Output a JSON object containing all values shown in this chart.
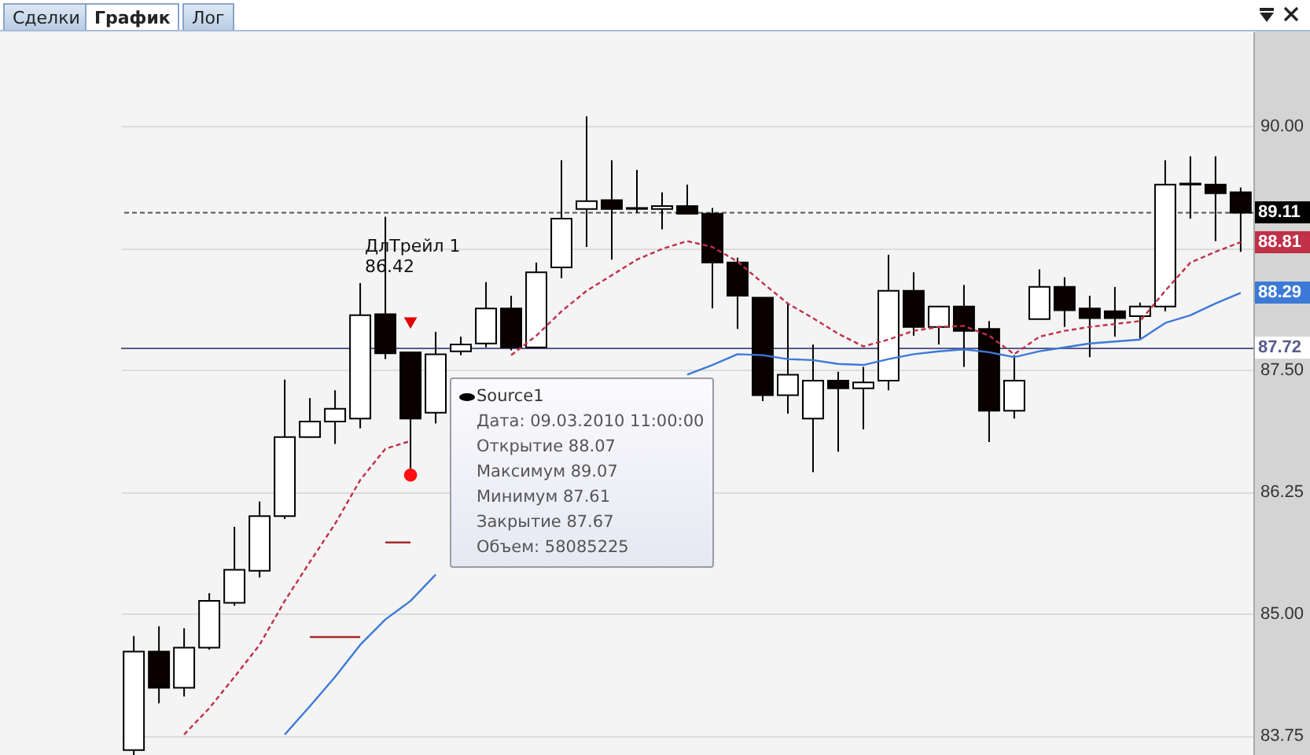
{
  "chart_data": {
    "type": "candlestick",
    "categories": [
      null,
      null,
      null,
      null,
      null,
      null,
      null,
      null,
      null,
      null,
      null,
      null,
      null,
      null,
      null,
      null,
      null,
      null,
      null,
      null,
      null,
      null,
      null,
      null,
      null,
      null,
      null,
      null,
      null,
      null,
      null,
      null,
      null,
      null,
      null,
      null,
      null,
      null,
      null,
      null,
      null,
      null,
      null,
      null,
      null
    ],
    "ohlc": [
      [
        83.6,
        84.77,
        83.55,
        84.61
      ],
      [
        84.61,
        84.87,
        84.08,
        84.24
      ],
      [
        84.24,
        84.85,
        84.15,
        84.65
      ],
      [
        84.65,
        85.21,
        84.63,
        85.13
      ],
      [
        85.11,
        85.89,
        85.08,
        85.45
      ],
      [
        85.44,
        86.15,
        85.37,
        86.0
      ],
      [
        86.0,
        87.4,
        85.97,
        86.81
      ],
      [
        86.81,
        87.21,
        86.81,
        86.97
      ],
      [
        86.97,
        87.29,
        86.74,
        87.1
      ],
      [
        87.0,
        88.39,
        86.9,
        88.06
      ],
      [
        88.07,
        89.07,
        87.61,
        87.67
      ],
      [
        87.68,
        87.68,
        86.45,
        87.0
      ],
      [
        87.06,
        87.89,
        86.95,
        87.66
      ],
      [
        87.69,
        87.84,
        87.65,
        87.76
      ],
      [
        87.77,
        88.4,
        87.73,
        88.13
      ],
      [
        88.13,
        88.26,
        87.7,
        87.73
      ],
      [
        87.73,
        88.6,
        87.73,
        88.5
      ],
      [
        88.55,
        89.65,
        88.44,
        89.05
      ],
      [
        89.15,
        90.1,
        88.76,
        89.23
      ],
      [
        89.24,
        89.65,
        88.63,
        89.15
      ],
      [
        89.16,
        89.55,
        89.11,
        89.15
      ],
      [
        89.15,
        89.32,
        88.94,
        89.18
      ],
      [
        89.18,
        89.4,
        89.1,
        89.1
      ],
      [
        89.1,
        89.16,
        88.13,
        88.6
      ],
      [
        88.6,
        88.65,
        87.92,
        88.26
      ],
      [
        88.24,
        88.24,
        87.18,
        87.24
      ],
      [
        87.24,
        88.18,
        87.05,
        87.45
      ],
      [
        87.0,
        87.76,
        86.45,
        87.39
      ],
      [
        87.39,
        87.48,
        86.66,
        87.31
      ],
      [
        87.31,
        87.53,
        86.89,
        87.37
      ],
      [
        87.39,
        88.68,
        87.29,
        88.31
      ],
      [
        88.31,
        88.5,
        87.85,
        87.94
      ],
      [
        87.94,
        88.15,
        87.76,
        88.15
      ],
      [
        88.15,
        88.37,
        87.53,
        87.9
      ],
      [
        87.92,
        88.0,
        86.76,
        87.08
      ],
      [
        87.08,
        87.65,
        87.0,
        87.39
      ],
      [
        88.02,
        88.53,
        88.02,
        88.35
      ],
      [
        88.35,
        88.45,
        87.94,
        88.11
      ],
      [
        88.13,
        88.26,
        87.63,
        88.03
      ],
      [
        88.1,
        88.35,
        87.84,
        88.03
      ],
      [
        88.05,
        88.19,
        87.82,
        88.15
      ],
      [
        88.15,
        89.65,
        88.1,
        89.4
      ],
      [
        89.4,
        89.69,
        89.05,
        89.41
      ],
      [
        89.4,
        89.69,
        88.82,
        89.31
      ],
      [
        89.32,
        89.37,
        88.71,
        89.11
      ]
    ],
    "series": [
      {
        "type": "line",
        "color": "#c03048",
        "line_style": "dashed",
        "values": [
          null,
          null,
          83.76,
          84.03,
          84.35,
          84.68,
          85.13,
          85.53,
          85.92,
          86.37,
          86.69,
          86.77,
          null,
          null,
          null,
          87.65,
          87.85,
          88.1,
          88.31,
          88.47,
          88.63,
          88.74,
          88.82,
          88.76,
          88.61,
          88.39,
          88.18,
          88.03,
          87.87,
          87.74,
          87.81,
          87.9,
          87.94,
          87.95,
          87.85,
          87.66,
          87.84,
          87.9,
          87.94,
          87.97,
          88.0,
          88.31,
          88.6,
          88.71,
          88.81
        ]
      },
      {
        "type": "line",
        "color": "#3c7ad8",
        "line_style": "solid",
        "values": [
          null,
          null,
          null,
          null,
          null,
          null,
          83.76,
          84.05,
          84.35,
          84.68,
          84.94,
          85.13,
          85.4,
          null,
          null,
          null,
          null,
          null,
          null,
          null,
          null,
          null,
          87.45,
          87.55,
          87.66,
          87.65,
          87.61,
          87.6,
          87.56,
          87.55,
          87.61,
          87.66,
          87.69,
          87.71,
          87.68,
          87.63,
          87.69,
          87.73,
          87.77,
          87.79,
          87.81,
          87.98,
          88.06,
          88.18,
          88.29
        ]
      },
      {
        "type": "line",
        "color": "#a52a2a",
        "line_style": "solid",
        "values": [
          null,
          null,
          null,
          null,
          null,
          null,
          null,
          84.76,
          84.76,
          84.76,
          null,
          null,
          null,
          null,
          null,
          null,
          null,
          null,
          null,
          null,
          null,
          null,
          null,
          null,
          null,
          null,
          null,
          null,
          null,
          null,
          null,
          null,
          null,
          null,
          null,
          null,
          null,
          null,
          null,
          null,
          null,
          null,
          null,
          null,
          null
        ]
      },
      {
        "type": "line",
        "color": "#a52a2a",
        "line_style": "solid",
        "values": [
          null,
          null,
          null,
          null,
          null,
          null,
          null,
          null,
          null,
          null,
          85.73,
          85.73,
          null,
          null,
          null,
          null,
          null,
          null,
          null,
          null,
          null,
          null,
          null,
          null,
          null,
          null,
          null,
          null,
          null,
          null,
          null,
          null,
          null,
          null,
          null,
          null,
          null,
          null,
          null,
          null,
          null,
          null,
          null,
          null,
          null
        ]
      },
      {
        "type": "scatter",
        "color": "#e00000",
        "marker": "triangle",
        "values": [
          null,
          null,
          null,
          null,
          null,
          null,
          null,
          null,
          null,
          null,
          null,
          87.98,
          null,
          null,
          null,
          null,
          null,
          null,
          null,
          null,
          null,
          null,
          null,
          null,
          null,
          null,
          null,
          null,
          null,
          null,
          null,
          null,
          null,
          null,
          null,
          null,
          null,
          null,
          null,
          null,
          null,
          null,
          null,
          null,
          null
        ]
      },
      {
        "type": "scatter",
        "color": "#ff1010",
        "marker": "circle",
        "values": [
          null,
          null,
          null,
          null,
          null,
          null,
          null,
          null,
          null,
          null,
          null,
          86.42,
          null,
          null,
          null,
          null,
          null,
          null,
          null,
          null,
          null,
          null,
          null,
          null,
          null,
          null,
          null,
          null,
          null,
          null,
          null,
          null,
          null,
          null,
          null,
          null,
          null,
          null,
          null,
          null,
          null,
          null,
          null,
          null,
          null
        ]
      }
    ],
    "ylim": [
      83.55,
      90.97
    ],
    "yticks": [
      {
        "value": 83.75,
        "label": "83.75"
      },
      {
        "value": 85,
        "label": "85.00"
      },
      {
        "value": 86.25,
        "label": "86.25"
      },
      {
        "value": 87.5,
        "label": "87.50"
      },
      {
        "value": 88.75,
        "label": null
      },
      {
        "value": 90,
        "label": "90.00"
      }
    ],
    "ref_lines": [
      {
        "axis": "y",
        "value": 89.11,
        "label": "89.11",
        "color": "#555555",
        "line_style": "dashed"
      },
      {
        "axis": "y",
        "value": 87.72,
        "label": "87.72",
        "color": "#5a5a8c",
        "line_style": "solid"
      }
    ],
    "annotations": [
      "Сделки",
      "График",
      "Лог",
      "ДлТрейл 1",
      "86.42",
      "Source1",
      "Дата: 09.03.2010 11:00:00",
      "Открытие 88.07",
      "Максимум 89.07",
      "Минимум 87.61",
      "Закрытие 87.67",
      "Объем: 58085225",
      {
        "text": "88.81",
        "y": 88.81
      },
      {
        "text": "88.29",
        "y": 88.29
      }
    ],
    "grid": "y",
    "tick_labels": "y"
  }
}
